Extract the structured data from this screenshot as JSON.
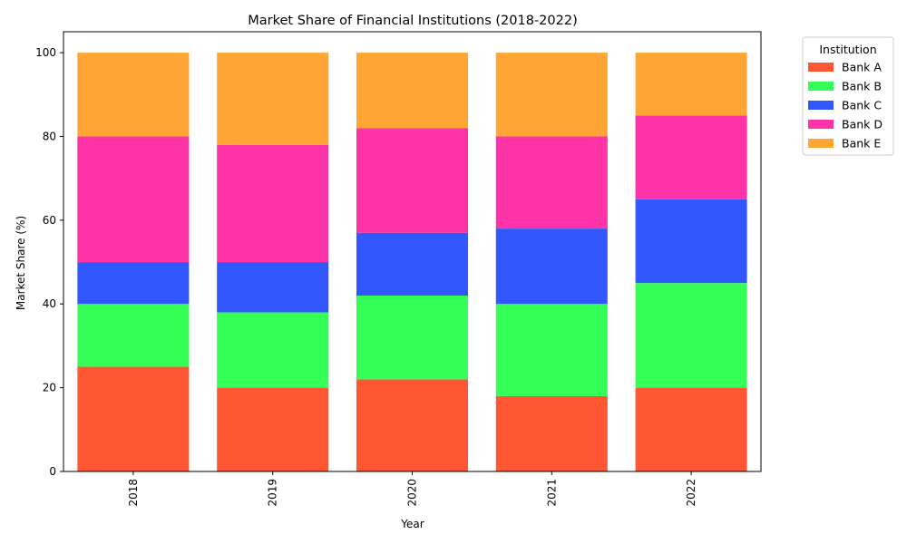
{
  "chart_data": {
    "type": "bar",
    "stacked": true,
    "title": "Market Share of Financial Institutions (2018-2022)",
    "xlabel": "Year",
    "ylabel": "Market Share (%)",
    "categories": [
      "2018",
      "2019",
      "2020",
      "2021",
      "2022"
    ],
    "ylim": [
      0,
      105
    ],
    "yticks": [
      0,
      20,
      40,
      60,
      80,
      100
    ],
    "grid": false,
    "legend": {
      "title": "Institution",
      "placement": "outside-top-right"
    },
    "series": [
      {
        "name": "Bank A",
        "color": "#ff5733",
        "values": [
          25,
          20,
          22,
          18,
          20
        ]
      },
      {
        "name": "Bank B",
        "color": "#33ff57",
        "values": [
          15,
          18,
          20,
          22,
          25
        ]
      },
      {
        "name": "Bank C",
        "color": "#3357ff",
        "values": [
          10,
          12,
          15,
          18,
          20
        ]
      },
      {
        "name": "Bank D",
        "color": "#ff33a8",
        "values": [
          30,
          28,
          25,
          22,
          20
        ]
      },
      {
        "name": "Bank E",
        "color": "#ffa533",
        "values": [
          20,
          22,
          18,
          20,
          15
        ]
      }
    ]
  }
}
